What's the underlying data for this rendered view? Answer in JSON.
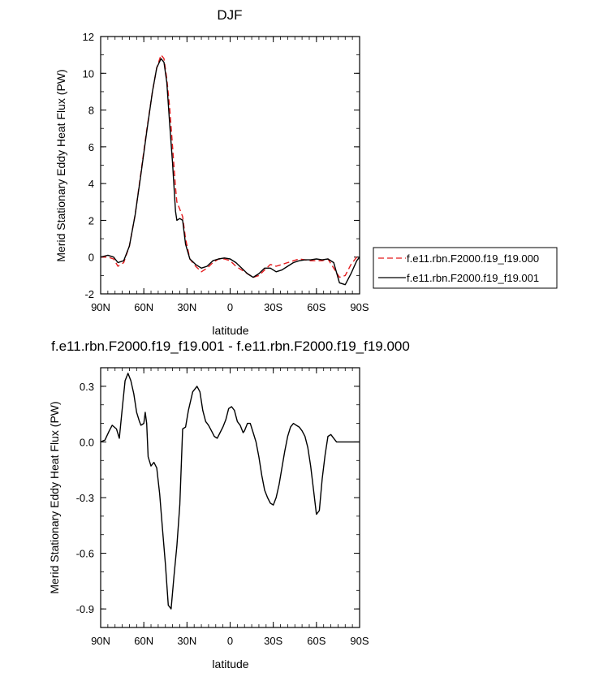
{
  "chart_data": [
    {
      "type": "line",
      "title": "DJF",
      "xlabel": "latitude",
      "ylabel": "Merid Stationary Eddy Heat Flux (PW)",
      "xlim": [
        90,
        -90
      ],
      "ylim": [
        -2,
        12
      ],
      "x_ticks": [
        90,
        60,
        30,
        0,
        -30,
        -60,
        -90
      ],
      "x_tick_labels": [
        "90N",
        "60N",
        "30N",
        "0",
        "30S",
        "60S",
        "90S"
      ],
      "y_ticks": [
        -2,
        0,
        2,
        4,
        6,
        8,
        10,
        12
      ],
      "y_tick_labels": [
        "-2",
        "0",
        "2",
        "4",
        "6",
        "8",
        "10",
        "12"
      ],
      "legend_position": "right",
      "series": [
        {
          "name": "f.e11.rbn.F2000.f19_f19.000",
          "color": "#e41a1c",
          "dash": "dashed",
          "x": [
            90,
            85,
            81,
            78,
            74,
            70,
            66,
            62,
            58,
            54,
            51,
            48,
            46,
            44,
            42,
            40,
            38,
            37,
            35,
            33,
            31,
            28,
            24,
            20,
            16,
            12,
            8,
            4,
            0,
            -4,
            -8,
            -12,
            -16,
            -20,
            -24,
            -28,
            -32,
            -36,
            -40,
            -44,
            -48,
            -52,
            -56,
            -60,
            -64,
            -68,
            -72,
            -76,
            -80,
            -84,
            -88,
            -90
          ],
          "y": [
            0,
            0,
            -0.1,
            -0.5,
            -0.3,
            0.6,
            2.3,
            4.6,
            6.9,
            9.0,
            10.3,
            11.0,
            10.8,
            9.7,
            8.1,
            6.0,
            3.8,
            3.0,
            2.6,
            2.2,
            1.0,
            -0.1,
            -0.5,
            -0.8,
            -0.6,
            -0.3,
            -0.1,
            -0.1,
            -0.2,
            -0.5,
            -0.7,
            -0.9,
            -1.1,
            -1.0,
            -0.7,
            -0.4,
            -0.5,
            -0.4,
            -0.3,
            -0.2,
            -0.1,
            -0.15,
            -0.2,
            -0.2,
            -0.2,
            -0.1,
            -0.6,
            -1.1,
            -1.0,
            -0.4,
            0,
            0
          ]
        },
        {
          "name": "f.e11.rbn.F2000.f19_f19.001",
          "color": "#000000",
          "dash": "solid",
          "x": [
            90,
            85,
            81,
            78,
            74,
            70,
            66,
            62,
            58,
            54,
            51,
            48,
            46,
            44,
            42,
            40,
            38,
            37,
            35,
            33,
            31,
            28,
            24,
            20,
            16,
            12,
            8,
            4,
            0,
            -4,
            -8,
            -12,
            -16,
            -20,
            -24,
            -28,
            -32,
            -36,
            -40,
            -44,
            -48,
            -52,
            -56,
            -60,
            -64,
            -68,
            -72,
            -76,
            -80,
            -84,
            -88,
            -90
          ],
          "y": [
            0,
            0.1,
            0,
            -0.3,
            -0.2,
            0.6,
            2.3,
            4.5,
            6.8,
            9.0,
            10.3,
            10.8,
            10.6,
            9.5,
            7.2,
            5.1,
            2.5,
            2.0,
            2.1,
            2.0,
            0.7,
            -0.1,
            -0.4,
            -0.6,
            -0.5,
            -0.2,
            -0.1,
            -0.05,
            -0.1,
            -0.3,
            -0.6,
            -0.9,
            -1.1,
            -0.9,
            -0.6,
            -0.6,
            -0.8,
            -0.7,
            -0.5,
            -0.3,
            -0.2,
            -0.15,
            -0.15,
            -0.1,
            -0.15,
            -0.1,
            -0.3,
            -1.4,
            -1.5,
            -0.9,
            -0.2,
            0
          ]
        }
      ]
    },
    {
      "type": "line",
      "title": "f.e11.rbn.F2000.f19_f19.001 - f.e11.rbn.F2000.f19_f19.000",
      "xlabel": "latitude",
      "ylabel": "Merid Stationary Eddy Heat Flux (PW)",
      "xlim": [
        90,
        -90
      ],
      "ylim": [
        -1.0,
        0.4
      ],
      "x_ticks": [
        90,
        60,
        30,
        0,
        -30,
        -60,
        -90
      ],
      "x_tick_labels": [
        "90N",
        "60N",
        "30N",
        "0",
        "30S",
        "60S",
        "90S"
      ],
      "y_ticks": [
        -0.9,
        -0.6,
        -0.3,
        0.0,
        0.3
      ],
      "y_tick_labels": [
        "-0.9",
        "-0.6",
        "-0.3",
        "0.0",
        "0.3"
      ],
      "series": [
        {
          "name": "",
          "color": "#000000",
          "dash": "solid",
          "x": [
            90,
            87,
            84,
            82,
            79,
            77,
            75,
            73,
            71,
            69,
            67,
            65,
            63,
            62,
            60,
            59,
            58,
            57,
            55,
            53,
            51,
            49,
            47,
            45,
            43,
            41,
            39,
            37,
            35,
            33,
            31,
            29,
            26,
            23,
            21,
            19,
            17,
            15,
            13,
            11,
            9,
            7,
            5,
            3,
            1,
            -1,
            -3,
            -5,
            -7,
            -9,
            -10,
            -12,
            -14,
            -16,
            -18,
            -20,
            -22,
            -24,
            -26,
            -28,
            -30,
            -32,
            -34,
            -36,
            -38,
            -40,
            -42,
            -44,
            -46,
            -48,
            -50,
            -52,
            -54,
            -56,
            -58,
            -60,
            -62,
            -64,
            -66,
            -68,
            -70,
            -72,
            -74,
            -76,
            -78,
            -80,
            -82,
            -84,
            -86,
            -88,
            -90
          ],
          "y": [
            0,
            0.01,
            0.06,
            0.09,
            0.07,
            0.02,
            0.18,
            0.33,
            0.37,
            0.33,
            0.26,
            0.16,
            0.11,
            0.09,
            0.1,
            0.16,
            0.1,
            -0.08,
            -0.13,
            -0.11,
            -0.14,
            -0.28,
            -0.47,
            -0.66,
            -0.88,
            -0.9,
            -0.72,
            -0.56,
            -0.34,
            0.07,
            0.08,
            0.17,
            0.27,
            0.3,
            0.27,
            0.17,
            0.11,
            0.09,
            0.06,
            0.03,
            0.02,
            0.05,
            0.08,
            0.12,
            0.18,
            0.19,
            0.17,
            0.11,
            0.09,
            0.05,
            0.06,
            0.1,
            0.1,
            0.05,
            0.0,
            -0.08,
            -0.18,
            -0.26,
            -0.3,
            -0.33,
            -0.34,
            -0.3,
            -0.23,
            -0.14,
            -0.05,
            0.03,
            0.08,
            0.1,
            0.09,
            0.08,
            0.06,
            0.03,
            -0.03,
            -0.13,
            -0.26,
            -0.39,
            -0.37,
            -0.2,
            -0.07,
            0.03,
            0.04,
            0.02,
            0,
            0,
            0,
            0,
            0,
            0,
            0,
            0,
            0
          ]
        }
      ]
    }
  ]
}
